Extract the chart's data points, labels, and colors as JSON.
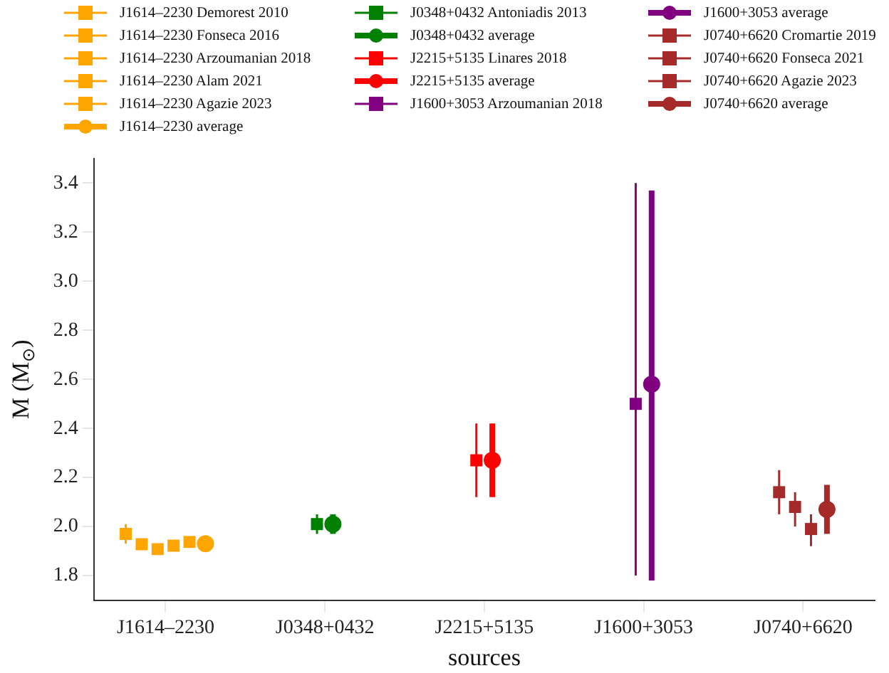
{
  "chart_data": {
    "type": "scatter",
    "xlabel": "sources",
    "ylabel": "M (M$_{⊙}$)",
    "categories": [
      "J1614–2230",
      "J0348+0432",
      "J2215+5135",
      "J1600+3053",
      "J0740+6620"
    ],
    "ylim": [
      1.7,
      3.5
    ],
    "yticks": [
      {
        "value": 1.8,
        "label": "1.8"
      },
      {
        "value": 2,
        "label": "2.0"
      },
      {
        "value": 2.2,
        "label": "2.2"
      },
      {
        "value": 2.4,
        "label": "2.4"
      },
      {
        "value": 2.6,
        "label": "2.6"
      },
      {
        "value": 2.8,
        "label": "2.8"
      },
      {
        "value": 3,
        "label": "3.0"
      },
      {
        "value": 3.2,
        "label": "3.2"
      },
      {
        "value": 3.4,
        "label": "3.4"
      }
    ],
    "grid": false,
    "legend": "top",
    "series": [
      {
        "name": "J1614–2230 Demorest 2010",
        "color": "#ffa500",
        "marker": "square",
        "x": [
          "J1614–2230"
        ],
        "values": [
          1.97
        ],
        "errors": [
          [
            1.93,
            2.01
          ]
        ]
      },
      {
        "name": "J1614–2230 Fonseca 2016",
        "color": "#ffa500",
        "marker": "square",
        "x": [
          "J1614–2230"
        ],
        "values": [
          1.928
        ],
        "errors": [
          [
            1.911,
            1.945
          ]
        ]
      },
      {
        "name": "J1614–2230 Arzoumanian 2018",
        "color": "#ffa500",
        "marker": "square",
        "x": [
          "J1614–2230"
        ],
        "values": [
          1.908
        ],
        "errors": [
          [
            1.892,
            1.924
          ]
        ]
      },
      {
        "name": "J1614–2230 Alam 2021",
        "color": "#ffa500",
        "marker": "square",
        "x": [
          "J1614–2230"
        ],
        "values": [
          1.922
        ],
        "errors": [
          [
            1.907,
            1.937
          ]
        ]
      },
      {
        "name": "J1614–2230 Agazie 2023",
        "color": "#ffa500",
        "marker": "square",
        "x": [
          "J1614–2230"
        ],
        "values": [
          1.937
        ],
        "errors": [
          [
            1.923,
            1.951
          ]
        ]
      },
      {
        "name": "J1614–2230 average",
        "color": "#ffa500",
        "marker": "circle",
        "x": [
          "J1614–2230"
        ],
        "values": [
          1.93
        ]
      },
      {
        "name": "J0348+0432 Antoniadis 2013",
        "color": "#008000",
        "marker": "square",
        "x": [
          "J0348+0432"
        ],
        "values": [
          2.01
        ],
        "errors": [
          [
            1.97,
            2.05
          ]
        ]
      },
      {
        "name": "J0348+0432 average",
        "color": "#008000",
        "marker": "circle",
        "x": [
          "J0348+0432"
        ],
        "values": [
          2.01
        ],
        "errors": [
          [
            1.97,
            2.05
          ]
        ]
      },
      {
        "name": "J2215+5135 Linares 2018",
        "color": "#ff0000",
        "marker": "square",
        "x": [
          "J2215+5135"
        ],
        "values": [
          2.27
        ],
        "errors": [
          [
            2.12,
            2.42
          ]
        ]
      },
      {
        "name": "J2215+5135 average",
        "color": "#ff0000",
        "marker": "circle",
        "x": [
          "J2215+5135"
        ],
        "values": [
          2.27
        ],
        "errors": [
          [
            2.12,
            2.42
          ]
        ]
      },
      {
        "name": "J1600+3053 Arzoumanian 2018",
        "color": "#800080",
        "marker": "square",
        "x": [
          "J1600+3053"
        ],
        "values": [
          2.5
        ],
        "errors": [
          [
            1.8,
            3.4
          ]
        ]
      },
      {
        "name": "J1600+3053 average",
        "color": "#800080",
        "marker": "circle",
        "x": [
          "J1600+3053"
        ],
        "values": [
          2.58
        ],
        "errors": [
          [
            1.78,
            3.37
          ]
        ]
      },
      {
        "name": "J0740+6620 Cromartie 2019",
        "color": "#a52a2a",
        "marker": "square",
        "x": [
          "J0740+6620"
        ],
        "values": [
          2.14
        ],
        "errors": [
          [
            2.05,
            2.23
          ]
        ]
      },
      {
        "name": "J0740+6620 Fonseca 2021",
        "color": "#a52a2a",
        "marker": "square",
        "x": [
          "J0740+6620"
        ],
        "values": [
          2.08
        ],
        "errors": [
          [
            2.0,
            2.14
          ]
        ]
      },
      {
        "name": "J0740+6620 Agazie 2023",
        "color": "#a52a2a",
        "marker": "square",
        "x": [
          "J0740+6620"
        ],
        "values": [
          1.99
        ],
        "errors": [
          [
            1.92,
            2.05
          ]
        ]
      },
      {
        "name": "J0740+6620 average",
        "color": "#a52a2a",
        "marker": "circle",
        "x": [
          "J0740+6620"
        ],
        "values": [
          2.07
        ],
        "errors": [
          [
            1.97,
            2.17
          ]
        ]
      }
    ]
  }
}
